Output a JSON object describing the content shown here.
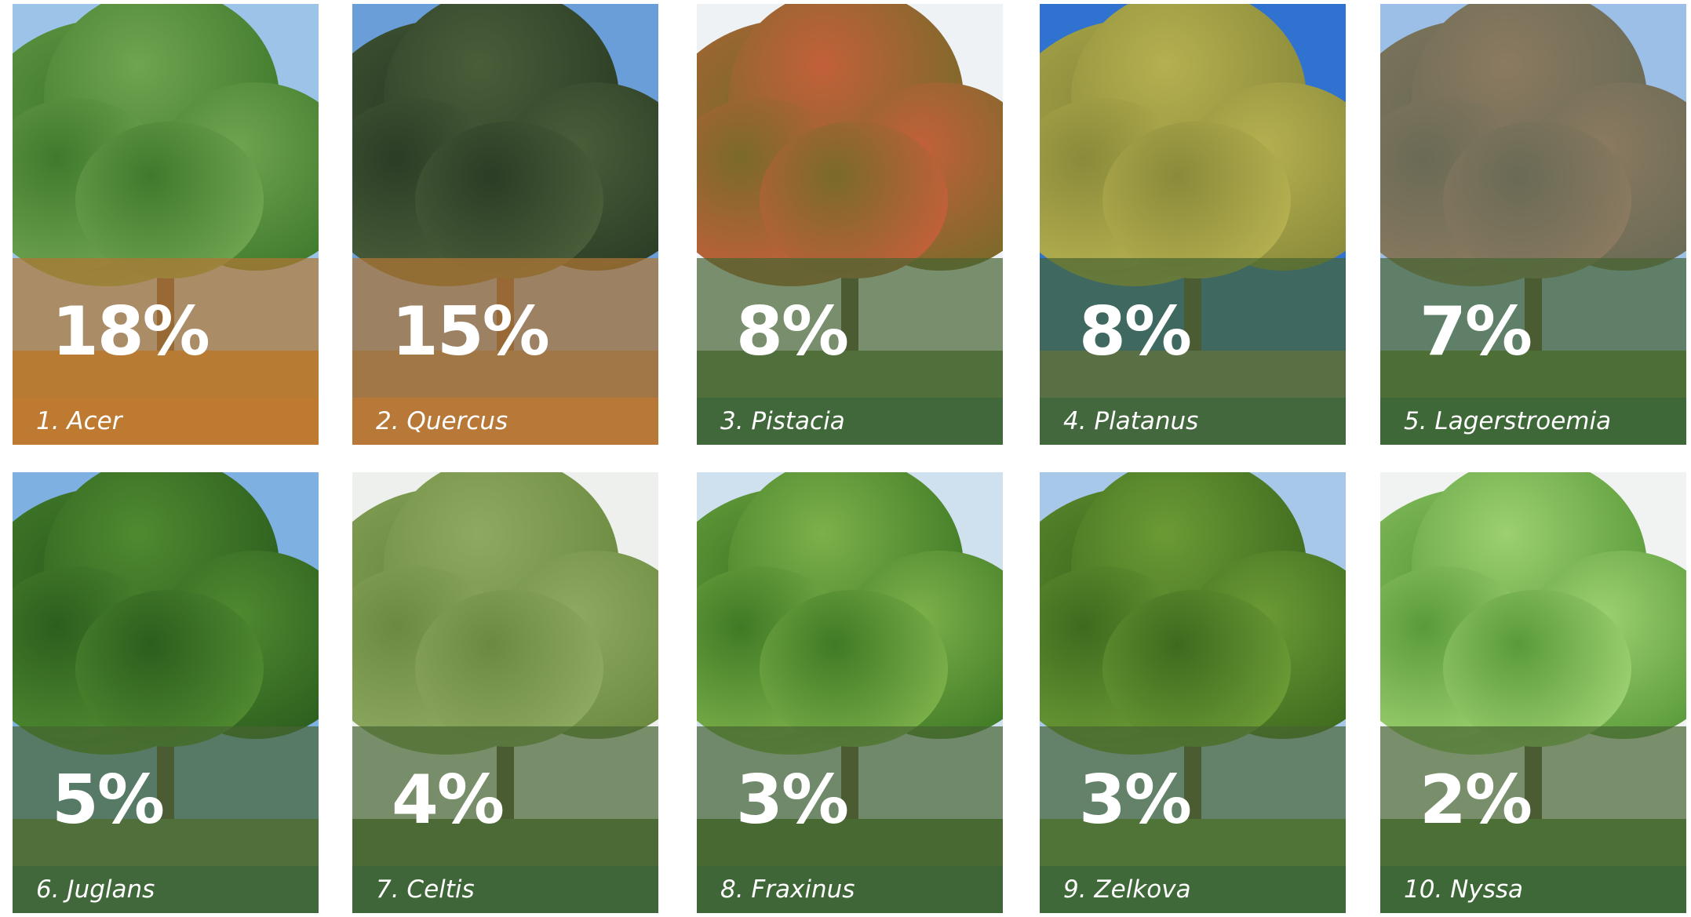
{
  "items": [
    {
      "percent": "18%",
      "label": "1. Acer"
    },
    {
      "percent": "15%",
      "label": "2. Quercus"
    },
    {
      "percent": "8%",
      "label": "3. Pistacia"
    },
    {
      "percent": "8%",
      "label": "4. Platanus"
    },
    {
      "percent": "7%",
      "label": "5. Lagerstroemia"
    },
    {
      "percent": "5%",
      "label": "6. Juglans"
    },
    {
      "percent": "4%",
      "label": "7. Celtis"
    },
    {
      "percent": "3%",
      "label": "8. Fraxinus"
    },
    {
      "percent": "3%",
      "label": "9. Zelkova"
    },
    {
      "percent": "2%",
      "label": "10. Nyssa"
    }
  ]
}
